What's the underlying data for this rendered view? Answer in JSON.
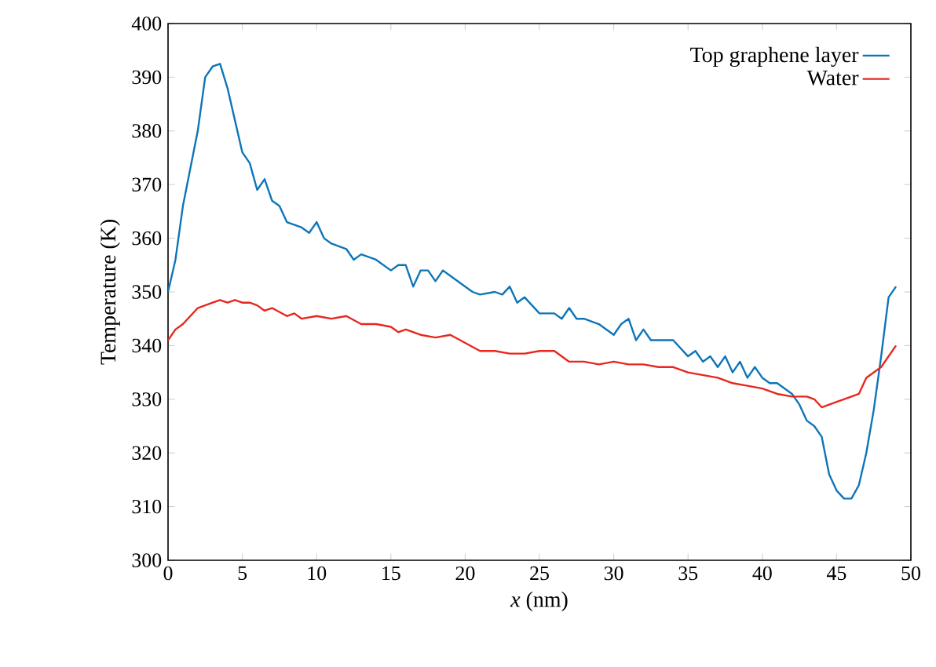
{
  "chart_data": {
    "type": "line",
    "xlabel": "*x* (nm)",
    "ylabel": "Temperature (K)",
    "xlim": [
      0,
      50
    ],
    "ylim": [
      300,
      400
    ],
    "xticks": [
      0,
      5,
      10,
      15,
      20,
      25,
      30,
      35,
      40,
      45,
      50
    ],
    "yticks": [
      300,
      310,
      320,
      330,
      340,
      350,
      360,
      370,
      380,
      390,
      400
    ],
    "grid": false,
    "legend": "top right",
    "line_style": "solid",
    "marker": "none",
    "series": [
      {
        "name": "Top graphene layer",
        "color": "#0e75b8",
        "x": [
          0,
          0.5,
          1,
          2,
          2.5,
          3,
          3.5,
          4,
          4.5,
          5,
          5.5,
          6,
          6.5,
          7,
          7.5,
          8,
          9,
          9.5,
          10,
          10.5,
          11,
          12,
          12.5,
          13,
          14,
          15,
          15.5,
          16,
          16.5,
          17,
          17.5,
          18,
          18.5,
          19,
          20,
          20.5,
          21,
          22,
          22.5,
          23,
          23.5,
          24,
          25,
          26,
          26.5,
          27,
          27.5,
          28,
          29,
          30,
          30.5,
          31,
          31.5,
          32,
          32.5,
          33.5,
          34,
          35,
          35.5,
          36,
          36.5,
          37,
          37.5,
          38,
          38.5,
          39,
          39.5,
          40,
          40.5,
          41,
          42,
          42.5,
          43,
          43.5,
          44,
          44.5,
          45,
          45.5,
          46,
          46.5,
          47,
          47.5,
          48,
          48.5,
          49
        ],
        "values": [
          350,
          356,
          366,
          380,
          390,
          392,
          392.5,
          388,
          382,
          376,
          374,
          369,
          371,
          367,
          366,
          363,
          362,
          361,
          363,
          360,
          359,
          358,
          356,
          357,
          356,
          354,
          355,
          355,
          351,
          354,
          354,
          352,
          354,
          353,
          351,
          350,
          349.5,
          350,
          349.5,
          351,
          348,
          349,
          346,
          346,
          345,
          347,
          345,
          345,
          344,
          342,
          344,
          345,
          341,
          343,
          341,
          341,
          341,
          338,
          339,
          337,
          338,
          336,
          338,
          335,
          337,
          334,
          336,
          334,
          333,
          333,
          331,
          329,
          326,
          325,
          323,
          316,
          313,
          311.5,
          311.5,
          314,
          320,
          328,
          338,
          349,
          351
        ]
      },
      {
        "name": "Water",
        "color": "#e8261e",
        "x": [
          0,
          0.5,
          1,
          2,
          2.5,
          3,
          3.5,
          4,
          4.5,
          5,
          5.5,
          6,
          6.5,
          7,
          8,
          8.5,
          9,
          10,
          11,
          12,
          13,
          14,
          15,
          15.5,
          16,
          17,
          18,
          19,
          20,
          21,
          22,
          23,
          24,
          25,
          26,
          27,
          28,
          29,
          30,
          31,
          32,
          33,
          34,
          35,
          36,
          37,
          38,
          39,
          40,
          41,
          42,
          43,
          43.5,
          44,
          45,
          46,
          46.5,
          47,
          48,
          49
        ],
        "values": [
          341,
          343,
          344,
          347,
          347.5,
          348,
          348.5,
          348,
          348.5,
          348,
          348,
          347.5,
          346.5,
          347,
          345.5,
          346,
          345,
          345.5,
          345,
          345.5,
          344,
          344,
          343.5,
          342.5,
          343,
          342,
          341.5,
          342,
          340.5,
          339,
          339,
          338.5,
          338.5,
          339,
          339,
          337,
          337,
          336.5,
          337,
          336.5,
          336.5,
          336,
          336,
          335,
          334.5,
          334,
          333,
          332.5,
          332,
          331,
          330.5,
          330.5,
          330,
          328.5,
          329.5,
          330.5,
          331,
          334,
          336,
          340
        ]
      }
    ]
  }
}
